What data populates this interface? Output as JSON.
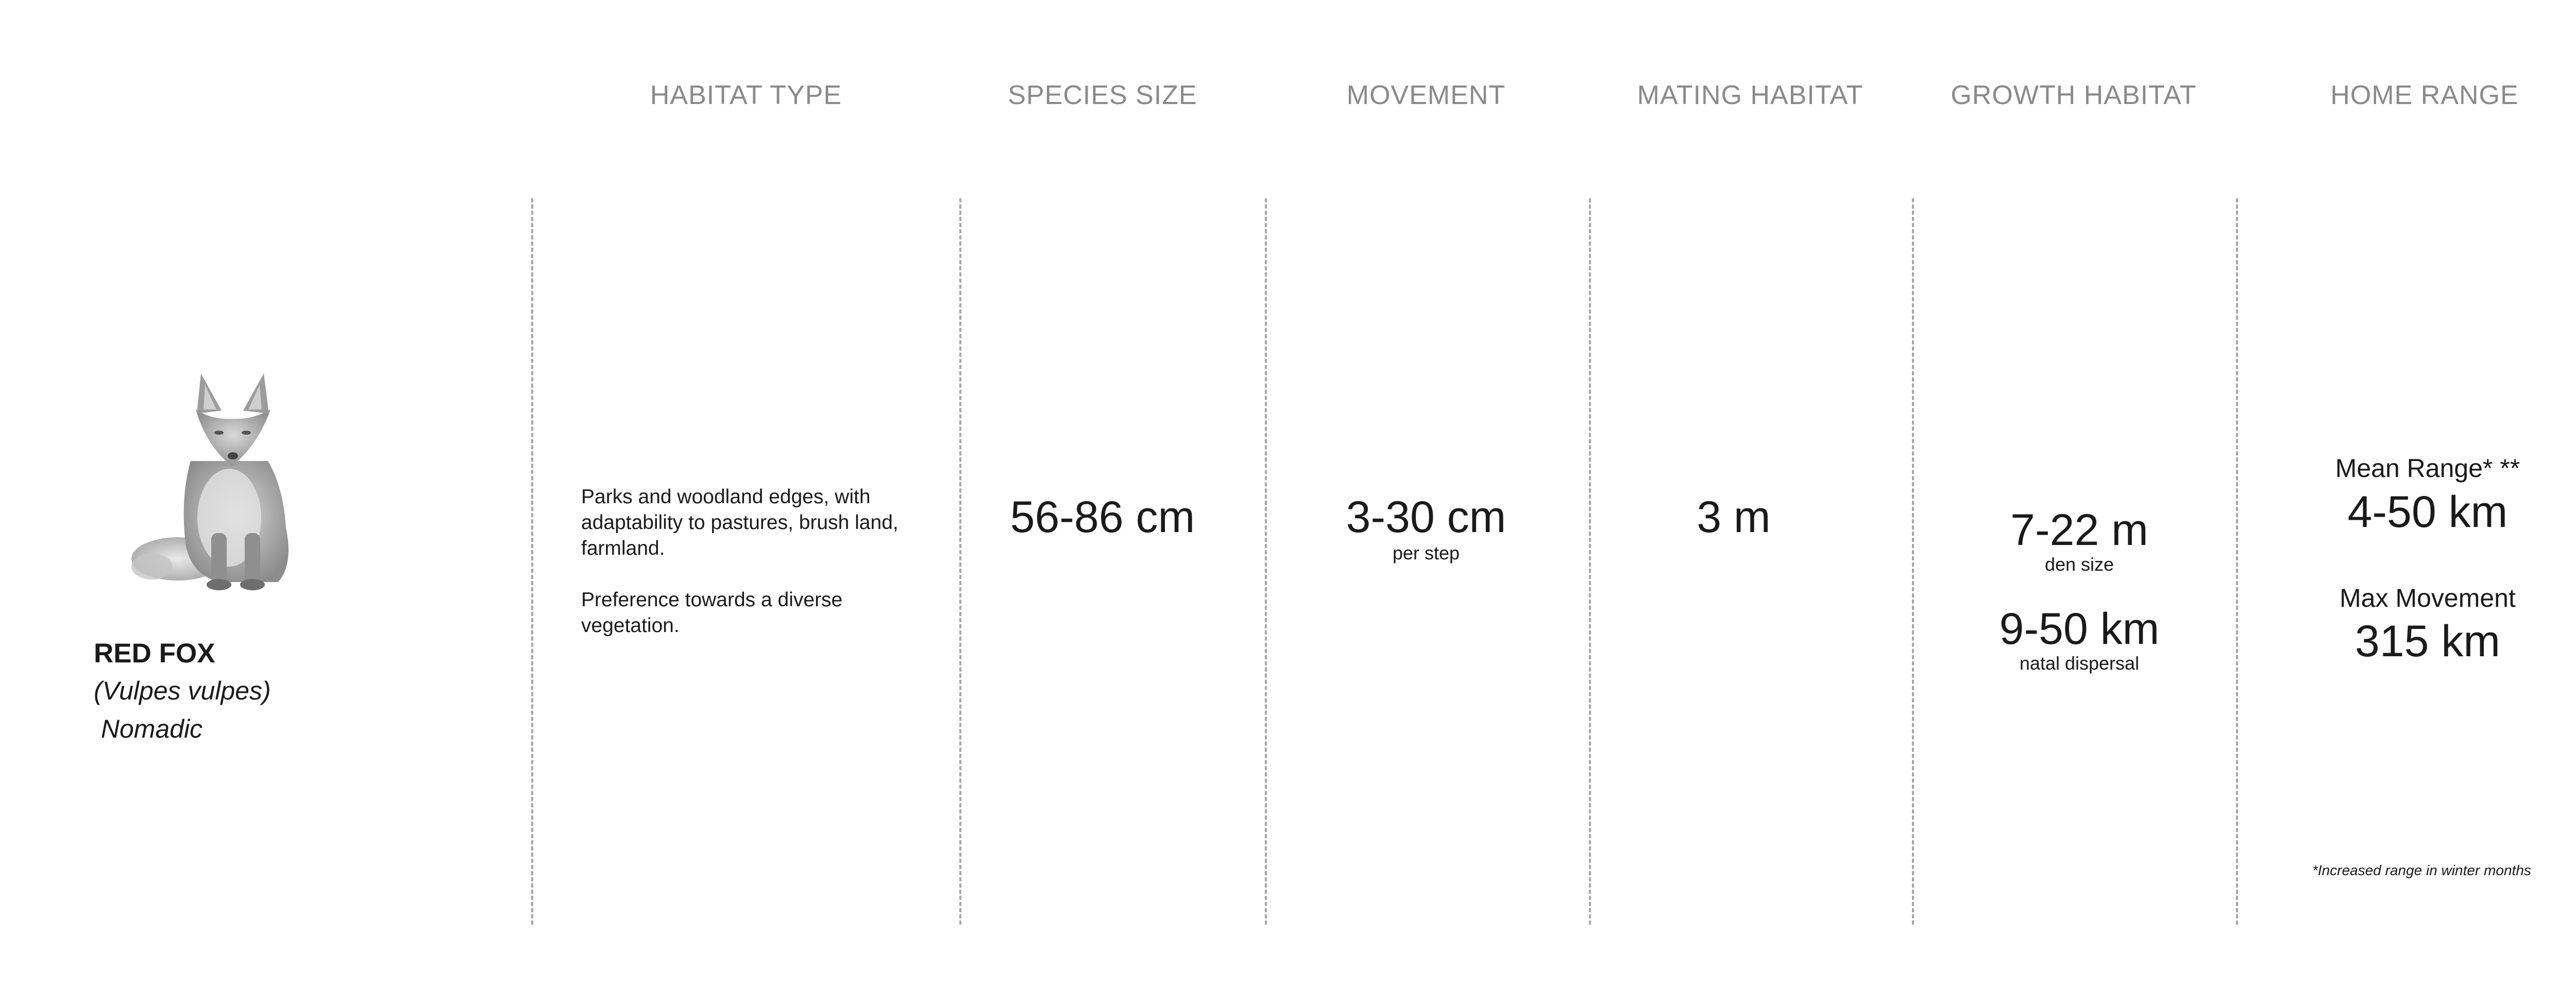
{
  "headers": {
    "habitat_type": "HABITAT TYPE",
    "species_size": "SPECIES SIZE",
    "movement": "MOVEMENT",
    "mating_habitat": "MATING HABITAT",
    "growth_habitat": "GROWTH HABITAT",
    "home_range": "HOME RANGE"
  },
  "species": {
    "name": "RED FOX",
    "latin": "(Vulpes vulpes)",
    "type": " Nomadic",
    "image_icon": "fox-image"
  },
  "habitat_type": {
    "paragraph1": "Parks and woodland edges, with adaptability to pastures, brush land, farmland.",
    "paragraph2": "Preference towards a diverse vegetation."
  },
  "species_size": {
    "value": "56-86 cm"
  },
  "movement": {
    "value": "3-30 cm",
    "note": "per step"
  },
  "mating_habitat": {
    "value": "3 m"
  },
  "growth_habitat": {
    "den_value": "7-22 m",
    "den_note": "den size",
    "dispersal_value": "9-50 km",
    "dispersal_note": "natal dispersal"
  },
  "home_range": {
    "mean_label": "Mean Range* **",
    "mean_value": "4-50 km",
    "max_label": "Max Movement",
    "max_value": "315 km",
    "footnote": "*Increased range in winter months"
  },
  "colors": {
    "header": "#8a8a8a",
    "divider": "#a6a6a6",
    "text": "#1a1a1a"
  }
}
